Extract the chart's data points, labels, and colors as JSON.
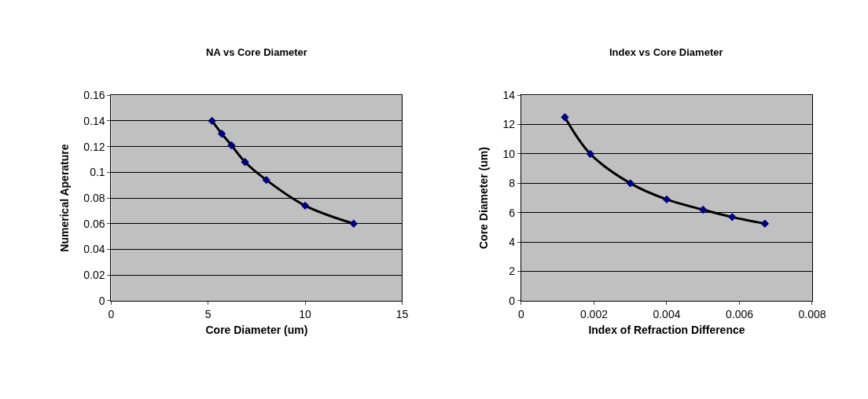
{
  "chart_data": [
    {
      "type": "line",
      "title": "NA vs Core Diameter",
      "xlabel": "Core Diameter (um)",
      "ylabel": "Numerical Aperature",
      "xlim": [
        0,
        15
      ],
      "xticks": [
        0,
        5,
        10,
        15
      ],
      "ylim": [
        0,
        0.16
      ],
      "yticks": [
        0,
        0.02,
        0.04,
        0.06,
        0.08,
        0.1,
        0.12,
        0.14,
        0.16
      ],
      "grid": "y",
      "series": [
        {
          "type": "scatter",
          "marker": "diamond",
          "color": "#000080",
          "x": [
            5.2,
            5.7,
            6.2,
            6.9,
            8,
            10,
            12.5
          ],
          "values": [
            0.14,
            0.13,
            0.121,
            0.108,
            0.094,
            0.074,
            0.06
          ]
        },
        {
          "color": "#000000",
          "x": [
            5.2,
            5.7,
            6.2,
            6.9,
            8,
            10,
            12.5
          ],
          "values": [
            0.14,
            0.13,
            0.121,
            0.108,
            0.094,
            0.074,
            0.06
          ]
        }
      ]
    },
    {
      "type": "line",
      "title": "Index vs Core Diameter",
      "xlabel": "Index of Refraction Difference",
      "ylabel": "Core Diameter (um)",
      "xlim": [
        0,
        0.008
      ],
      "xticks": [
        0,
        0.002,
        0.004,
        0.006,
        0.008
      ],
      "ylim": [
        0,
        14
      ],
      "yticks": [
        0,
        2,
        4,
        6,
        8,
        10,
        12,
        14
      ],
      "grid": "y",
      "series": [
        {
          "type": "scatter",
          "marker": "diamond",
          "color": "#000080",
          "x": [
            0.0012,
            0.0019,
            0.003,
            0.004,
            0.005,
            0.0058,
            0.0067
          ],
          "values": [
            12.5,
            10,
            8,
            6.9,
            6.2,
            5.7,
            5.25
          ]
        },
        {
          "color": "#000000",
          "x": [
            0.0012,
            0.0019,
            0.003,
            0.004,
            0.005,
            0.0058,
            0.0067
          ],
          "values": [
            12.5,
            10,
            8,
            6.9,
            6.2,
            5.7,
            5.25
          ]
        }
      ]
    }
  ]
}
